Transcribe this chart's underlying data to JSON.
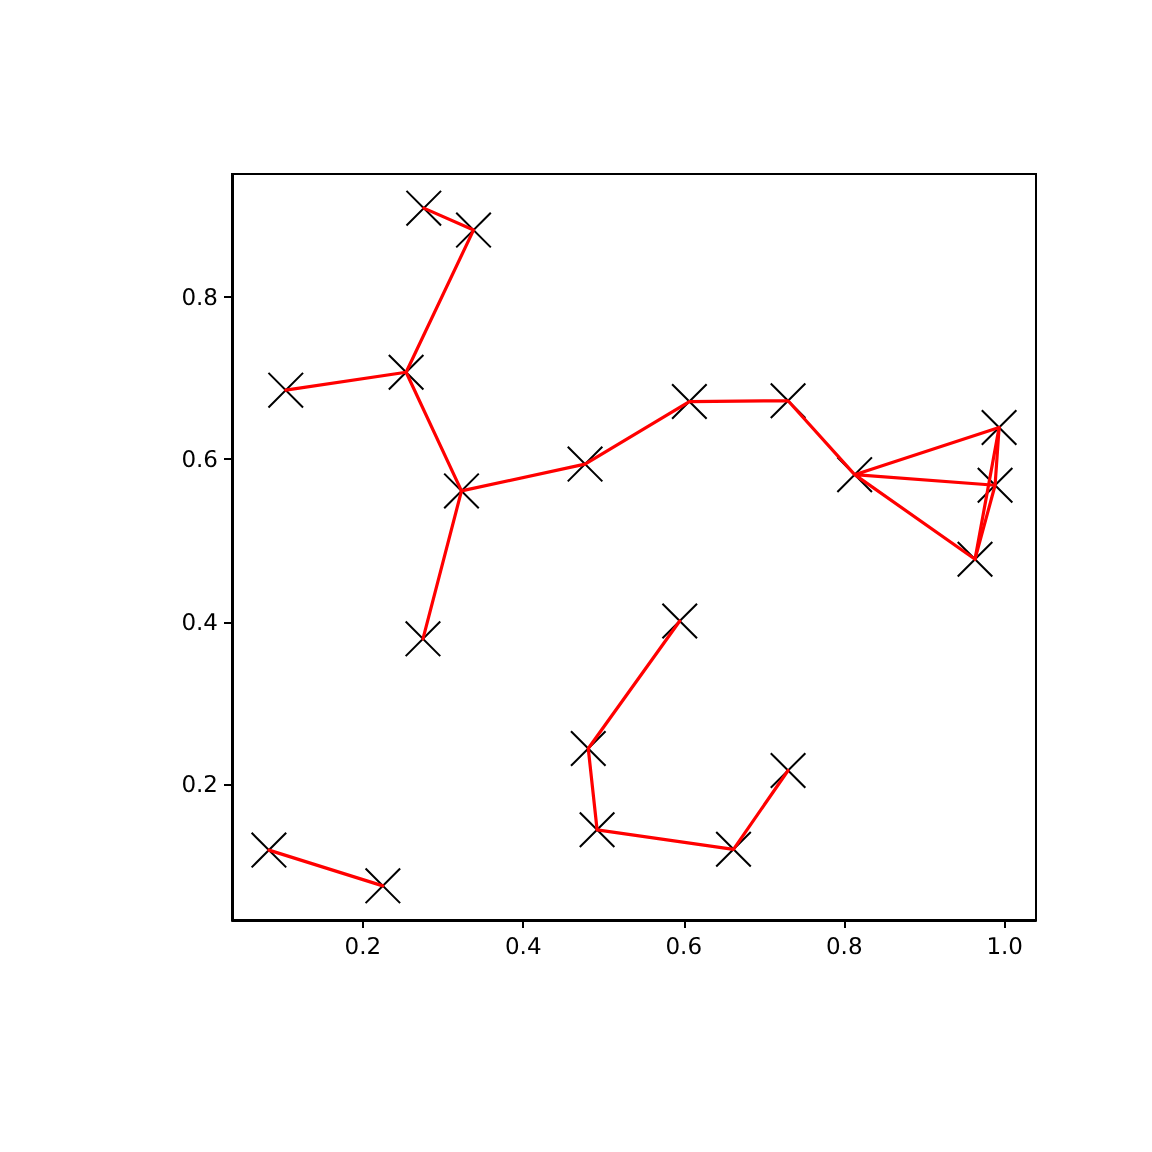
{
  "chart_data": {
    "type": "scatter",
    "xlim": [
      0.037,
      1.039
    ],
    "ylim": [
      0.033,
      0.951
    ],
    "xticks": [
      0.2,
      0.4,
      0.6,
      0.8,
      {
        "value": 1,
        "label": "1.0"
      }
    ],
    "yticks": [
      0.2,
      0.4,
      0.6,
      0.8
    ],
    "series": [
      {
        "type": "line",
        "color": "#ff0000",
        "marker": "none",
        "x": [
          0.083,
          0.225
        ],
        "values": [
          0.119,
          0.075
        ]
      },
      {
        "type": "line",
        "color": "#ff0000",
        "marker": "none",
        "x": [
          0.104,
          0.254,
          0.338,
          0.276
        ],
        "values": [
          0.685,
          0.707,
          0.882,
          0.909
        ]
      },
      {
        "type": "line",
        "color": "#ff0000",
        "marker": "none",
        "x": [
          0.254,
          0.323,
          0.275
        ],
        "values": [
          0.707,
          0.561,
          0.379
        ]
      },
      {
        "type": "line",
        "color": "#ff0000",
        "marker": "none",
        "x": [
          0.323,
          0.477,
          0.607,
          0.73,
          0.813,
          0.993,
          0.988,
          0.963,
          0.813,
          0.988
        ],
        "values": [
          0.561,
          0.594,
          0.671,
          0.672,
          0.581,
          0.639,
          0.568,
          0.477,
          0.581,
          0.568
        ]
      },
      {
        "type": "line",
        "color": "#ff0000",
        "marker": "none",
        "x": [
          0.993,
          0.963
        ],
        "values": [
          0.639,
          0.477
        ]
      },
      {
        "type": "line",
        "color": "#ff0000",
        "marker": "none",
        "x": [
          0.595,
          0.481,
          0.492,
          0.662,
          0.73
        ],
        "values": [
          0.401,
          0.244,
          0.144,
          0.12,
          0.217
        ]
      },
      {
        "color": "#000000",
        "marker": "cross",
        "x": [
          0.083,
          0.225,
          0.276,
          0.338,
          0.104,
          0.254,
          0.323,
          0.275,
          0.477,
          0.607,
          0.73,
          0.813,
          0.993,
          0.988,
          0.963,
          0.595,
          0.481,
          0.492,
          0.662,
          0.73
        ],
        "values": [
          0.119,
          0.075,
          0.909,
          0.882,
          0.685,
          0.707,
          0.561,
          0.379,
          0.594,
          0.671,
          0.672,
          0.581,
          0.639,
          0.568,
          0.477,
          0.401,
          0.244,
          0.144,
          0.12,
          0.217
        ]
      }
    ]
  }
}
